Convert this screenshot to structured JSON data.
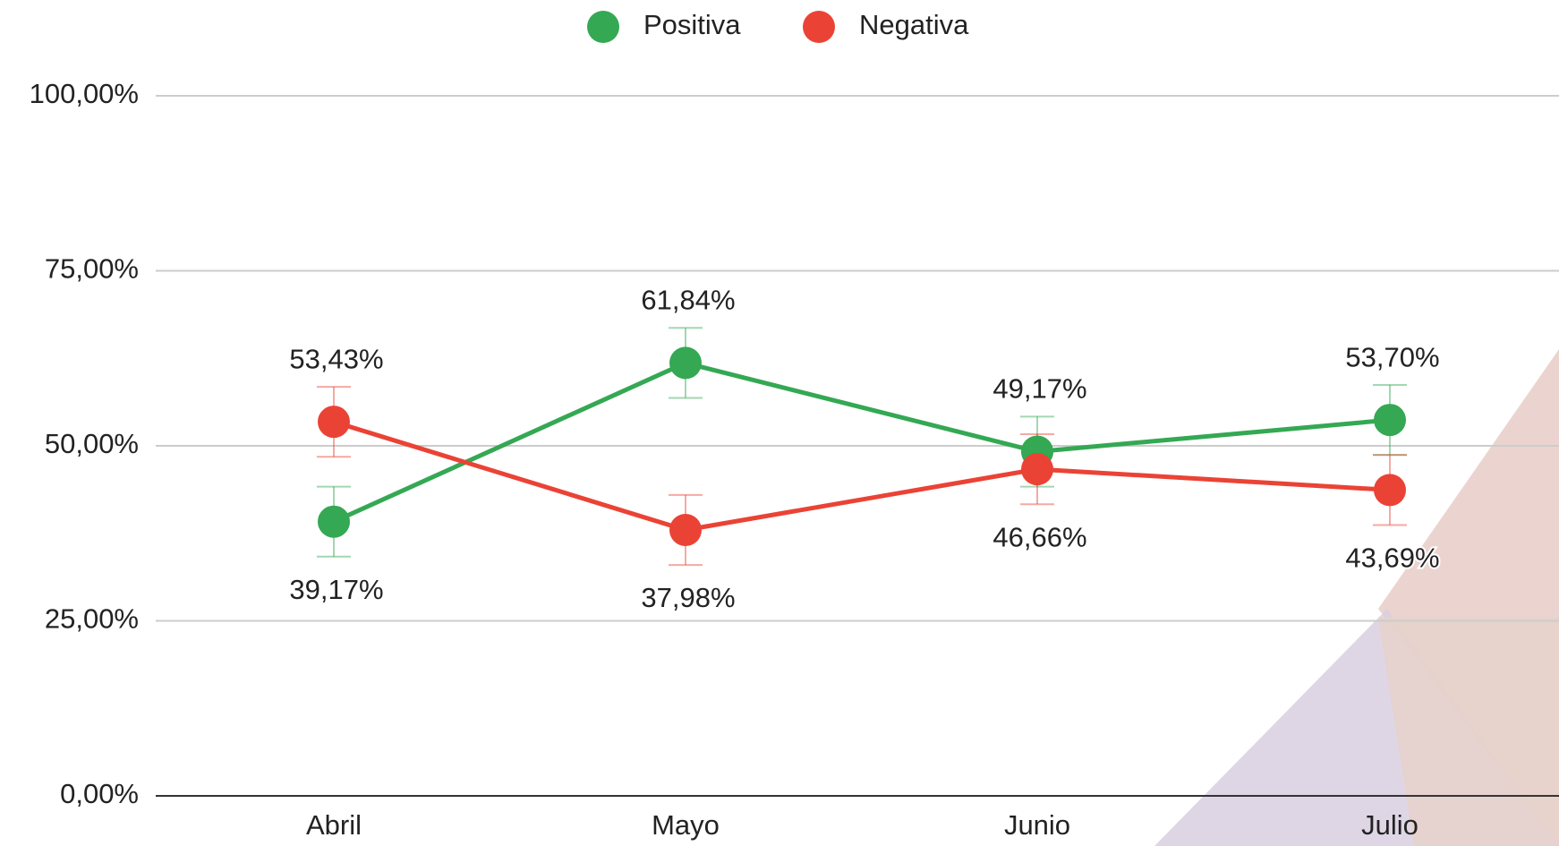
{
  "chart_data": {
    "type": "line",
    "categories": [
      "Abril",
      "Mayo",
      "Junio",
      "Julio"
    ],
    "series": [
      {
        "name": "Positiva",
        "color": "#34a853",
        "values": [
          39.17,
          61.84,
          49.17,
          53.7
        ],
        "value_labels": [
          "39,17%",
          "61,84%",
          "49,17%",
          "53,70%"
        ],
        "errors": [
          5,
          5,
          5,
          5
        ]
      },
      {
        "name": "Negativa",
        "color": "#ea4335",
        "values": [
          53.43,
          37.98,
          46.66,
          43.69
        ],
        "value_labels": [
          "53,43%",
          "37,98%",
          "46,66%",
          "43,69%"
        ],
        "errors": [
          5,
          5,
          5,
          5
        ]
      }
    ],
    "ylim": [
      0,
      100
    ],
    "yticks": [
      {
        "value": 0,
        "label": "0,00%"
      },
      {
        "value": 25,
        "label": "25,00%"
      },
      {
        "value": 50,
        "label": "50,00%"
      },
      {
        "value": 75,
        "label": "75,00%"
      },
      {
        "value": 100,
        "label": "100,00%"
      }
    ],
    "grid": true,
    "legend": "top"
  }
}
